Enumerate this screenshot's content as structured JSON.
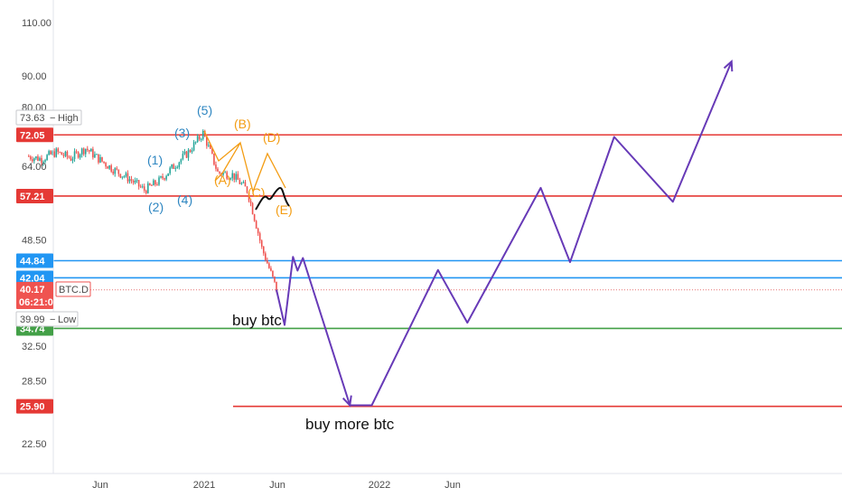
{
  "chart_data": {
    "type": "line",
    "symbol": "BTC.D",
    "y_scale": "log",
    "ylim": [
      20.5,
      118
    ],
    "y_ticks": [
      "110.00",
      "90.00",
      "80.00",
      "64.00",
      "48.50",
      "32.50",
      "28.50",
      "22.50"
    ],
    "x_ticks": [
      "Jun",
      "2021",
      "Jun",
      "2022",
      "Jun"
    ],
    "high": {
      "label": "73.63",
      "suffix": "High"
    },
    "low": {
      "label": "39.99",
      "suffix": "Low"
    },
    "current": {
      "price": "40.17",
      "countdown": "06:21:03",
      "symbol_tag": "BTC.D"
    },
    "price_levels": [
      {
        "value": 72.05,
        "label": "72.05",
        "color": "#e53935",
        "extend": "full"
      },
      {
        "value": 57.21,
        "label": "57.21",
        "color": "#e53935",
        "extend": "full"
      },
      {
        "value": 44.84,
        "label": "44.84",
        "color": "#2196f3",
        "extend": "full"
      },
      {
        "value": 42.04,
        "label": "42.04",
        "color": "#2196f3",
        "extend": "full"
      },
      {
        "value": 34.74,
        "label": "34.74",
        "color": "#43a047",
        "extend": "full"
      },
      {
        "value": 25.9,
        "label": "25.90",
        "color": "#e53935",
        "extend": "partial"
      }
    ],
    "price_history": [
      [
        "2020-01",
        66.5
      ],
      [
        "2020-02",
        65.8
      ],
      [
        "2020-03",
        67.5
      ],
      [
        "2020-04",
        66.0
      ],
      [
        "2020-05",
        68.5
      ],
      [
        "2020-06",
        65.5
      ],
      [
        "2020-07",
        63.0
      ],
      [
        "2020-08",
        61.0
      ],
      [
        "2020-09",
        58.5
      ],
      [
        "2020-10",
        60.5
      ],
      [
        "2020-11",
        64.0
      ],
      [
        "2020-12",
        67.5
      ],
      [
        "2021-01",
        72.5
      ],
      [
        "2021-02",
        62.5
      ],
      [
        "2021-03",
        62.0
      ],
      [
        "2021-04",
        58.5
      ],
      [
        "2021-05",
        47.0
      ],
      [
        "2021-06",
        40.2
      ]
    ],
    "projection": [
      [
        "2021-06",
        40.2
      ],
      [
        "2021-06",
        35.2
      ],
      [
        "2021-07",
        45.5
      ],
      [
        "2021-07",
        43.2
      ],
      [
        "2021-07",
        45.3
      ],
      [
        "2021-11",
        26.0
      ],
      [
        "2021-12",
        26.0
      ],
      [
        "2022-05",
        43.3
      ],
      [
        "2022-07",
        35.5
      ],
      [
        "2022-12",
        59.0
      ],
      [
        "2023-02",
        44.6
      ],
      [
        "2023-05",
        71.5
      ],
      [
        "2023-09",
        56.0
      ],
      [
        "2024-01",
        95.0
      ]
    ],
    "elliott_wave_labels": [
      "(1)",
      "(2)",
      "(3)",
      "(4)",
      "(5)"
    ],
    "abcde_labels": [
      "(A)",
      "(B)",
      "(C)",
      "(D)",
      "(E)"
    ],
    "annotations": [
      "buy btc",
      "buy more btc"
    ]
  },
  "colors": {
    "candle_up": "#26a69a",
    "candle_down": "#ef5350",
    "projection": "#673ab7",
    "wave_count": "#2e86c1",
    "abcde": "#f39c12",
    "current_price": "#e57373"
  }
}
